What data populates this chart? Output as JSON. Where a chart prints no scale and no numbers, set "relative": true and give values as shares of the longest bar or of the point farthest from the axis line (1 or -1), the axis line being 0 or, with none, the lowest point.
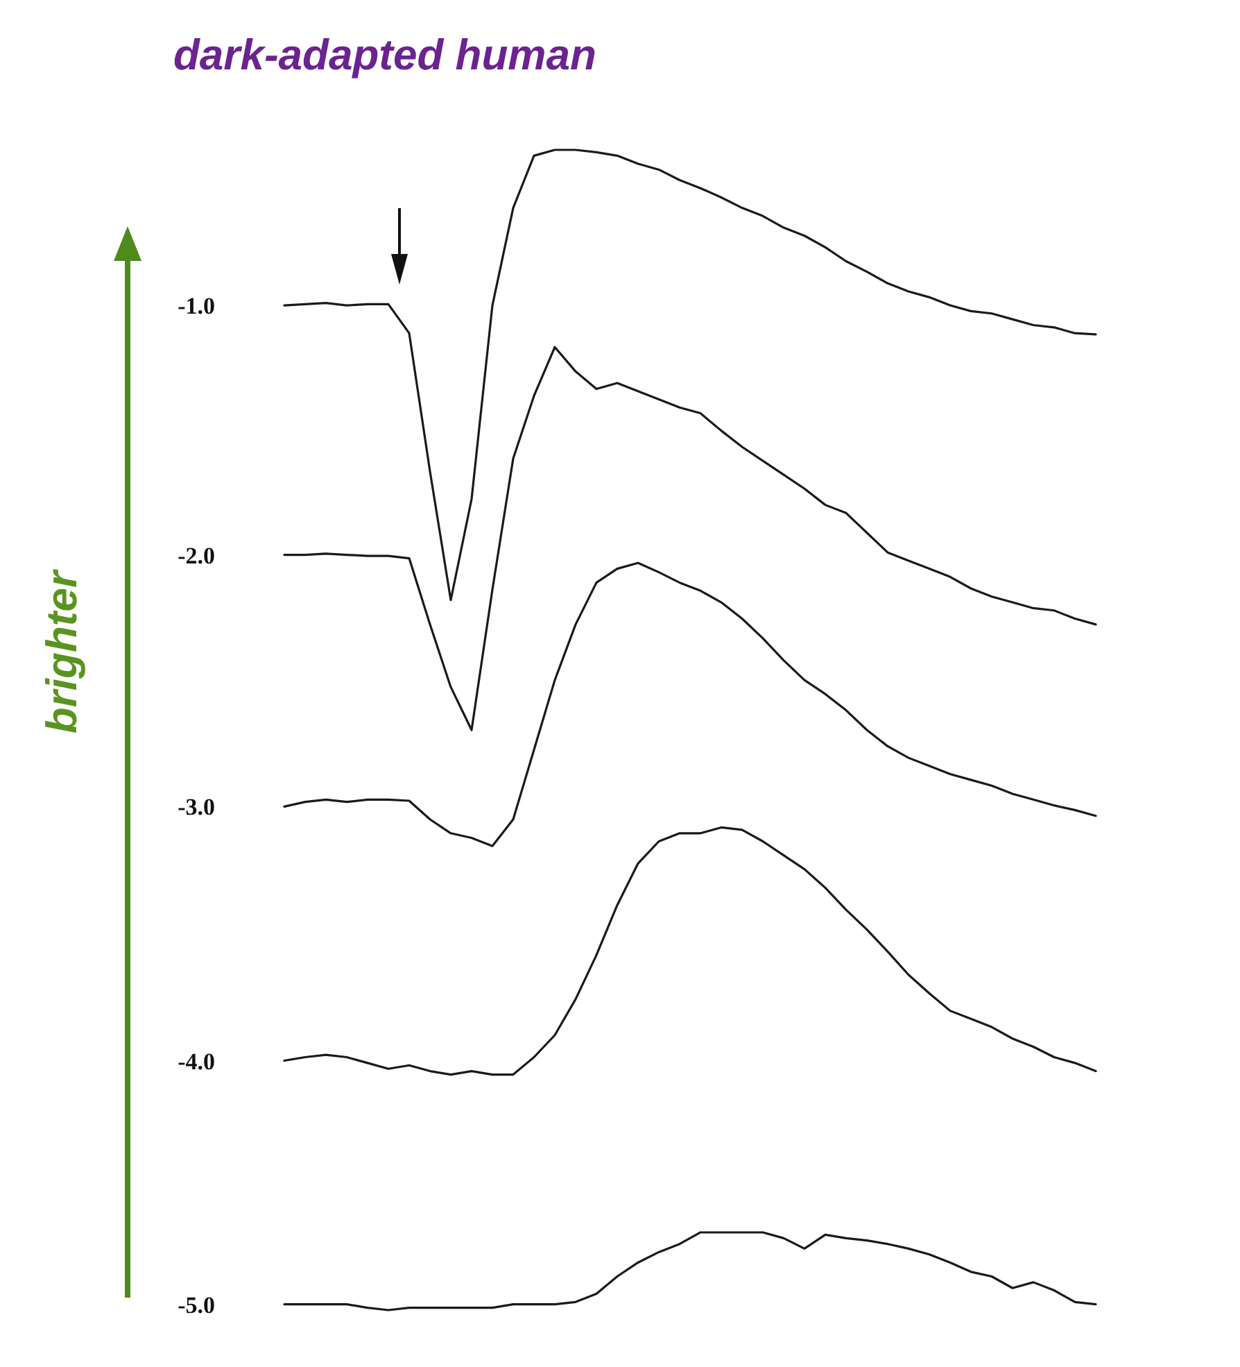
{
  "chart_data": {
    "type": "line",
    "title": "dark-adapted human",
    "annotations": [
      "brighter"
    ],
    "relative": true,
    "marker": "none",
    "line_style": "solid",
    "categories": [
      null,
      null,
      null,
      null,
      null,
      null,
      null,
      null,
      null,
      null,
      null,
      null,
      null,
      null,
      null,
      null,
      null,
      null,
      null,
      null,
      null,
      null,
      null,
      null,
      null,
      null,
      null,
      null,
      null,
      null,
      null,
      null,
      null,
      null,
      null,
      null,
      null,
      null,
      null,
      null
    ],
    "series": [
      {
        "name": "-1.0",
        "color": "#1a1a1a",
        "values": [
          0.866,
          0.867,
          0.868,
          0.866,
          0.867,
          0.867,
          0.842,
          0.723,
          0.612,
          0.699,
          0.866,
          0.95,
          0.995,
          1,
          1,
          0.998,
          0.995,
          0.988,
          0.983,
          0.974,
          0.967,
          0.959,
          0.95,
          0.943,
          0.933,
          0.926,
          0.916,
          0.904,
          0.895,
          0.885,
          0.878,
          0.873,
          0.866,
          0.861,
          0.859,
          0.854,
          0.849,
          0.847,
          0.842,
          0.841
        ]
      },
      {
        "name": "-2.0",
        "color": "#1a1a1a",
        "values": [
          0.651,
          0.651,
          0.652,
          0.651,
          0.65,
          0.65,
          0.648,
          0.591,
          0.537,
          0.5,
          0.621,
          0.734,
          0.788,
          0.83,
          0.809,
          0.794,
          0.799,
          0.792,
          0.785,
          0.778,
          0.773,
          0.758,
          0.744,
          0.732,
          0.72,
          0.708,
          0.694,
          0.687,
          0.67,
          0.653,
          0.646,
          0.639,
          0.632,
          0.622,
          0.615,
          0.61,
          0.605,
          0.603,
          0.596,
          0.591
        ]
      },
      {
        "name": "-3.0",
        "color": "#1a1a1a",
        "values": [
          0.434,
          0.438,
          0.44,
          0.438,
          0.44,
          0.44,
          0.439,
          0.423,
          0.411,
          0.407,
          0.4,
          0.423,
          0.483,
          0.543,
          0.591,
          0.627,
          0.639,
          0.644,
          0.636,
          0.627,
          0.62,
          0.61,
          0.596,
          0.579,
          0.56,
          0.543,
          0.531,
          0.517,
          0.5,
          0.486,
          0.476,
          0.469,
          0.462,
          0.457,
          0.452,
          0.445,
          0.44,
          0.435,
          0.431,
          0.426
        ]
      },
      {
        "name": "-4.0",
        "color": "#1a1a1a",
        "values": [
          0.215,
          0.218,
          0.22,
          0.218,
          0.213,
          0.208,
          0.211,
          0.206,
          0.203,
          0.206,
          0.203,
          0.203,
          0.218,
          0.237,
          0.268,
          0.306,
          0.349,
          0.385,
          0.404,
          0.411,
          0.411,
          0.416,
          0.414,
          0.404,
          0.392,
          0.38,
          0.364,
          0.345,
          0.328,
          0.309,
          0.289,
          0.273,
          0.258,
          0.251,
          0.244,
          0.234,
          0.227,
          0.218,
          0.213,
          0.206
        ]
      },
      {
        "name": "-5.0",
        "color": "#1a1a1a",
        "values": [
          0.005,
          0.005,
          0.005,
          0.005,
          0.002,
          0,
          0.002,
          0.002,
          0.002,
          0.002,
          0.002,
          0.005,
          0.005,
          0.005,
          0.007,
          0.014,
          0.029,
          0.041,
          0.05,
          0.057,
          0.067,
          0.067,
          0.067,
          0.067,
          0.062,
          0.053,
          0.065,
          0.062,
          0.06,
          0.057,
          0.053,
          0.048,
          0.041,
          0.033,
          0.029,
          0.019,
          0.024,
          0.017,
          0.007,
          0.005
        ]
      }
    ]
  }
}
